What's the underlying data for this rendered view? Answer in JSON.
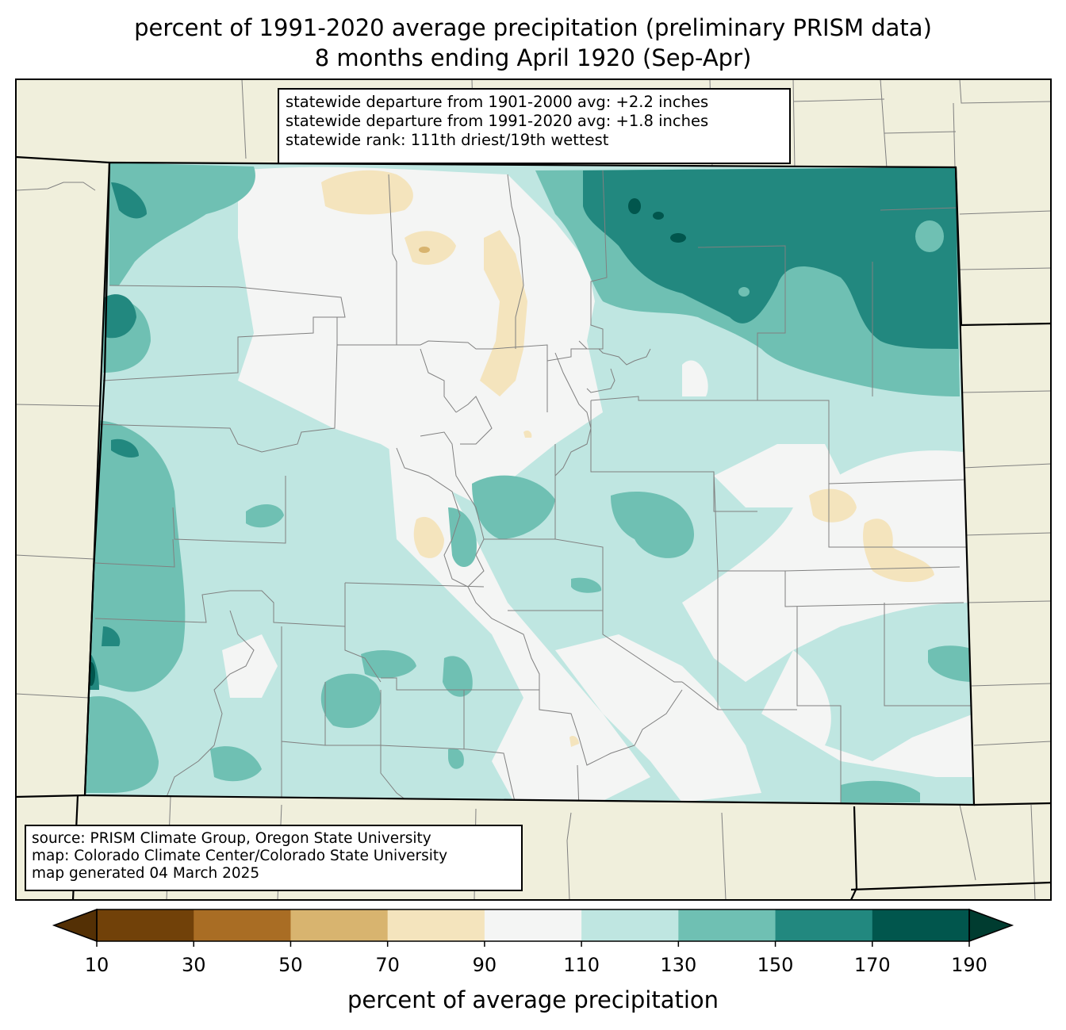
{
  "title_line1": "percent of 1991-2020 average precipitation (preliminary PRISM data)",
  "title_line2": "8 months ending April 1920 (Sep-Apr)",
  "stats": [
    "statewide departure from 1901-2000 avg: +2.2 inches",
    "statewide departure from 1991-2020 avg: +1.8 inches",
    "statewide rank: 111th driest/19th wettest"
  ],
  "credits": [
    "source: PRISM Climate Group, Oregon State University",
    "map: Colorado Climate Center/Colorado State University",
    "map generated 04 March 2025"
  ],
  "colorbar": {
    "label": "percent of average precipitation",
    "ticks": [
      "10",
      "30",
      "50",
      "70",
      "90",
      "110",
      "130",
      "150",
      "170",
      "190"
    ],
    "under_color": "#543005",
    "over_color": "#003c30",
    "colors": [
      "#714109",
      "#a96d24",
      "#d8b46f",
      "#f4e4bd",
      "#f4f5f4",
      "#bfe6e1",
      "#6fc0b3",
      "#22887f",
      "#01564d"
    ]
  },
  "colors": {
    "land_outside": "#f0efdc",
    "county_lines": "#808080",
    "state_lines": "#000000"
  }
}
